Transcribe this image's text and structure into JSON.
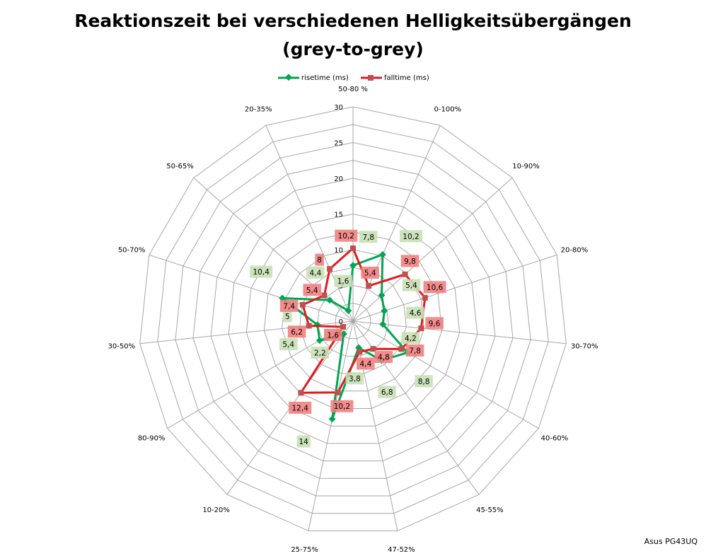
{
  "chart_data": {
    "type": "radar",
    "title_line1": "Reaktionszeit bei verschiedenen Helligkeitsübergängen",
    "title_line2": "(grey-to-grey)",
    "categories": [
      "50-80 %",
      "0-100%",
      "10-90%",
      "20-80%",
      "30-70%",
      "40-60%",
      "45-55%",
      "47-52%",
      "25-75%",
      "10-20%",
      "80-90%",
      "30-50%",
      "50-70%",
      "50-65%",
      "20-35%"
    ],
    "rlim": [
      0,
      30
    ],
    "ticks": [
      0,
      5,
      10,
      15,
      20,
      25,
      30
    ],
    "tick_labels": [
      "0",
      "5",
      "10",
      "15",
      "20",
      "25",
      "30"
    ],
    "grid": true,
    "legend_position": "top",
    "series": [
      {
        "name": "risetime (ms)",
        "color": "#00A651",
        "marker": "diamond",
        "values": [
          7.8,
          10.2,
          5.4,
          4.6,
          4.2,
          8.8,
          6.8,
          3.8,
          14,
          2.2,
          5.4,
          5,
          10.4,
          4.4,
          1.6
        ],
        "labels": [
          "7,8",
          "10,2",
          "5,4",
          "4,6",
          "4,2",
          "8,8",
          "6,8",
          "3,8",
          "14",
          "2,2",
          "5,4",
          "5",
          "10,4",
          "4,4",
          "1,6"
        ],
        "label_color": "#C6E0B4"
      },
      {
        "name": "falltime (ms)",
        "color": "#E31A1C",
        "marker": "square",
        "values": [
          10.2,
          5.4,
          9.8,
          10.6,
          9.6,
          7.8,
          4.8,
          4.4,
          10.2,
          12.4,
          1.6,
          6.2,
          7.4,
          5.4,
          8
        ],
        "labels": [
          "10,2",
          "5,4",
          "9,8",
          "10,6",
          "9,6",
          "7,8",
          "4,8",
          "4,4",
          "10,2",
          "12,4",
          "1,6",
          "6,2",
          "7,4",
          "5,4",
          "8"
        ],
        "label_color": "#F28080"
      }
    ]
  },
  "credit": "Asus PG43UQ"
}
